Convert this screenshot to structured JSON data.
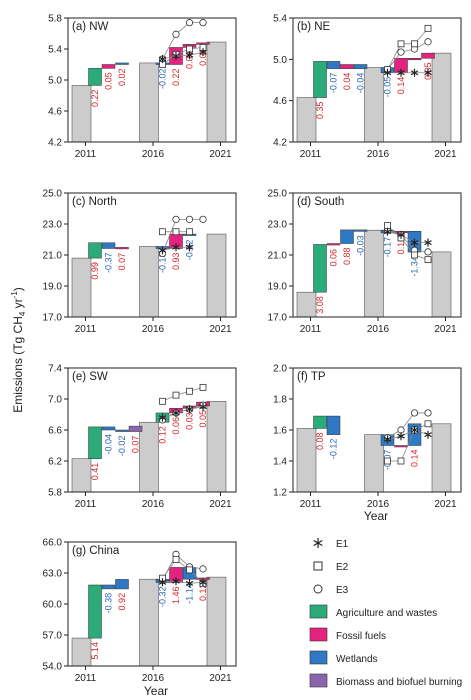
{
  "figure": {
    "y_axis_title": "Emissions (Tg CH",
    "y_axis_title_sub": "4",
    "y_axis_title_tail": " yr",
    "y_axis_title_sup": "-1",
    "y_axis_title_close": ")",
    "x_axis_title": "Year"
  },
  "colors": {
    "agriculture": "#2bab7a",
    "fossil": "#e4227f",
    "wetlands": "#2f78c4",
    "biomass": "#8a64ad",
    "total_bar": "#cccccc",
    "positive_label": "#d6262c",
    "negative_label": "#2765b0"
  },
  "legend": {
    "items": [
      {
        "key": "E1",
        "label": "E1",
        "marker": "asterisk"
      },
      {
        "key": "E2",
        "label": "E2",
        "marker": "square"
      },
      {
        "key": "E3",
        "label": "E3",
        "marker": "circle"
      },
      {
        "key": "agriculture",
        "label": "Agriculture and wastes",
        "marker": "patch"
      },
      {
        "key": "fossil",
        "label": "Fossil fuels",
        "marker": "patch"
      },
      {
        "key": "wetlands",
        "label": "Wetlands",
        "marker": "patch"
      },
      {
        "key": "biomass",
        "label": "Biomass and biofuel burning",
        "marker": "patch"
      }
    ]
  },
  "chart_data": [
    {
      "type": "bar",
      "panel_label": "(a)",
      "region": "NW",
      "xticks": [
        "2011",
        "2016",
        "2021"
      ],
      "ylim": [
        4.2,
        5.8
      ],
      "yticks": [
        "4.2",
        "4.6",
        "5.0",
        "5.4",
        "5.8"
      ],
      "totals": [
        4.93,
        5.22,
        5.49
      ],
      "period1_changes": [
        {
          "sector": "agriculture",
          "value": 0.22,
          "label": "0.22"
        },
        {
          "sector": "fossil",
          "value": 0.05,
          "label": "0.05"
        },
        {
          "sector": "wetlands",
          "value": 0.02,
          "label": "0.02"
        }
      ],
      "period2_changes": [
        {
          "sector": "wetlands",
          "value": -0.02,
          "label": "-0.02"
        },
        {
          "sector": "fossil",
          "value": 0.22,
          "label": "0.22"
        },
        {
          "sector": "fossil",
          "value": 0.04,
          "label": "0.04"
        },
        {
          "sector": "fossil",
          "value": 0.02,
          "label": "0.02"
        }
      ],
      "E1": [
        5.27,
        5.31,
        5.32,
        5.36
      ],
      "E2": [
        5.2,
        5.33,
        5.4,
        5.42
      ],
      "E3": [
        5.27,
        5.59,
        5.74,
        5.74
      ]
    },
    {
      "type": "bar",
      "panel_label": "(b)",
      "region": "NE",
      "xticks": [
        "2011",
        "2016",
        "2021"
      ],
      "ylim": [
        4.2,
        5.4
      ],
      "yticks": [
        "4.2",
        "4.6",
        "5.0",
        "5.4"
      ],
      "totals": [
        4.63,
        4.92,
        5.06
      ],
      "period1_changes": [
        {
          "sector": "agriculture",
          "value": 0.35,
          "label": "0.35"
        },
        {
          "sector": "wetlands",
          "value": -0.07,
          "label": "-0.07"
        },
        {
          "sector": "fossil",
          "value": 0.04,
          "label": "0.04"
        },
        {
          "sector": "wetlands",
          "value": -0.04,
          "label": "-0.04"
        }
      ],
      "period2_changes": [
        {
          "sector": "wetlands",
          "value": -0.05,
          "label": "-0.05"
        },
        {
          "sector": "fossil",
          "value": 0.14,
          "label": "0.14"
        },
        {
          "sector": "fossil",
          "value": 0.0,
          "label": ""
        },
        {
          "sector": "fossil",
          "value": 0.05,
          "label": "0.05"
        }
      ],
      "E1": [
        4.87,
        4.87,
        4.87,
        4.87
      ],
      "E2": [
        4.9,
        5.15,
        5.15,
        5.3
      ],
      "E3": [
        4.9,
        5.07,
        5.1,
        5.17
      ]
    },
    {
      "type": "bar",
      "panel_label": "(c)",
      "region": "North",
      "xticks": [
        "2011",
        "2016",
        "2021"
      ],
      "ylim": [
        17.0,
        25.0
      ],
      "yticks": [
        "17.0",
        "19.0",
        "21.0",
        "23.0",
        "25.0"
      ],
      "totals": [
        20.8,
        21.55,
        22.35
      ],
      "period1_changes": [
        {
          "sector": "agriculture",
          "value": 0.99,
          "label": "0.99"
        },
        {
          "sector": "wetlands",
          "value": -0.37,
          "label": "-0.37"
        },
        {
          "sector": "fossil",
          "value": 0.07,
          "label": "0.07"
        }
      ],
      "period2_changes": [
        {
          "sector": "wetlands",
          "value": -0.13,
          "label": "-0.13"
        },
        {
          "sector": "fossil",
          "value": 0.93,
          "label": "0.93"
        },
        {
          "sector": "wetlands",
          "value": -0.02,
          "label": "-0.02"
        }
      ],
      "E1": [
        21.3,
        21.5,
        21.5
      ],
      "E2": [
        22.5,
        22.5,
        22.5
      ],
      "E3": [
        21.1,
        23.3,
        23.3,
        23.3
      ]
    },
    {
      "type": "bar",
      "panel_label": "(d)",
      "region": "South",
      "xticks": [
        "2011",
        "2016",
        "2021"
      ],
      "ylim": [
        17.0,
        25.0
      ],
      "yticks": [
        "17.0",
        "19.0",
        "21.0",
        "23.0",
        "25.0"
      ],
      "totals": [
        18.6,
        22.6,
        21.2
      ],
      "period1_changes": [
        {
          "sector": "agriculture",
          "value": 3.08,
          "label": "3.08"
        },
        {
          "sector": "fossil",
          "value": 0.06,
          "label": "0.06"
        },
        {
          "sector": "wetlands",
          "value": 0.88,
          "label": "0.88"
        },
        {
          "sector": "wetlands",
          "value": -0.03,
          "label": "-0.03"
        }
      ],
      "period2_changes": [
        {
          "sector": "wetlands",
          "value": -0.17,
          "label": "-0.17"
        },
        {
          "sector": "fossil",
          "value": 0.1,
          "label": "0.10"
        },
        {
          "sector": "wetlands",
          "value": -1.34,
          "label": "-1.34"
        }
      ],
      "E1": [
        22.5,
        22.3,
        21.8,
        21.8
      ],
      "E2": [
        22.9,
        22.1,
        21.0,
        20.7
      ],
      "E3": [
        22.6,
        22.3,
        21.3,
        21.2
      ]
    },
    {
      "type": "bar",
      "panel_label": "(e)",
      "region": "SW",
      "xticks": [
        "2011",
        "2016",
        "2021"
      ],
      "ylim": [
        5.8,
        7.4
      ],
      "yticks": [
        "5.8",
        "6.2",
        "6.6",
        "7.0",
        "7.4"
      ],
      "totals": [
        6.23,
        6.7,
        6.97
      ],
      "period1_changes": [
        {
          "sector": "agriculture",
          "value": 0.41,
          "label": "0.41"
        },
        {
          "sector": "wetlands",
          "value": -0.04,
          "label": "-0.04"
        },
        {
          "sector": "wetlands",
          "value": -0.02,
          "label": "-0.02"
        },
        {
          "sector": "biomass",
          "value": 0.07,
          "label": "0.07"
        }
      ],
      "period2_changes": [
        {
          "sector": "agriculture",
          "value": 0.12,
          "label": "0.12"
        },
        {
          "sector": "fossil",
          "value": 0.06,
          "label": "0.06"
        },
        {
          "sector": "fossil",
          "value": 0.03,
          "label": "0.03"
        },
        {
          "sector": "fossil",
          "value": 0.05,
          "label": "0.05"
        }
      ],
      "E1": [
        6.76,
        6.82,
        6.87,
        6.9
      ],
      "E2": [
        6.97,
        7.05,
        7.1,
        7.15
      ],
      "E3": [
        6.73,
        6.82,
        6.87,
        6.92
      ]
    },
    {
      "type": "bar",
      "panel_label": "(f)",
      "region": "TP",
      "xticks": [
        "2011",
        "2016",
        "2021"
      ],
      "ylim": [
        1.2,
        2.0
      ],
      "yticks": [
        "1.2",
        "1.4",
        "1.6",
        "1.8",
        "2.0"
      ],
      "totals": [
        1.61,
        1.57,
        1.64
      ],
      "period1_changes": [
        {
          "sector": "agriculture",
          "value": 0.08,
          "label": "0.08"
        },
        {
          "sector": "wetlands",
          "value": -0.12,
          "label": "-0.12"
        }
      ],
      "period2_changes": [
        {
          "sector": "wetlands",
          "value": -0.07,
          "label": "-0.07"
        },
        {
          "sector": "fossil",
          "value": 0.0,
          "label": ""
        },
        {
          "sector": "wetlands",
          "value": 0.14,
          "label": "0.14"
        }
      ],
      "E1": [
        1.54,
        1.56,
        1.6,
        1.57
      ],
      "E2": [
        1.4,
        1.4,
        1.6,
        1.64
      ],
      "E3": [
        1.55,
        1.6,
        1.71,
        1.71
      ]
    },
    {
      "type": "bar",
      "panel_label": "(g)",
      "region": "China",
      "xticks": [
        "2011",
        "2016",
        "2021"
      ],
      "ylim": [
        54.0,
        66.0
      ],
      "yticks": [
        "54.0",
        "57.0",
        "60.0",
        "63.0",
        "66.0"
      ],
      "totals": [
        56.7,
        62.4,
        62.6
      ],
      "period1_changes": [
        {
          "sector": "agriculture",
          "value": 5.14,
          "label": "5.14"
        },
        {
          "sector": "wetlands",
          "value": -0.38,
          "label": "-0.38"
        },
        {
          "sector": "wetlands",
          "value": 0.92,
          "label": "0.92"
        }
      ],
      "period2_changes": [
        {
          "sector": "wetlands",
          "value": -0.32,
          "label": "-0.32"
        },
        {
          "sector": "fossil",
          "value": 1.46,
          "label": "1.46"
        },
        {
          "sector": "wetlands",
          "value": -1.14,
          "label": "-1.14"
        },
        {
          "sector": "fossil",
          "value": 0.12,
          "label": "0.12"
        }
      ],
      "E1": [
        62.1,
        62.2,
        62.0,
        62.1
      ],
      "E2": [
        62.5,
        64.3,
        63.3,
        62.0
      ],
      "E3": [
        62.3,
        64.8,
        63.6,
        63.4
      ]
    }
  ]
}
